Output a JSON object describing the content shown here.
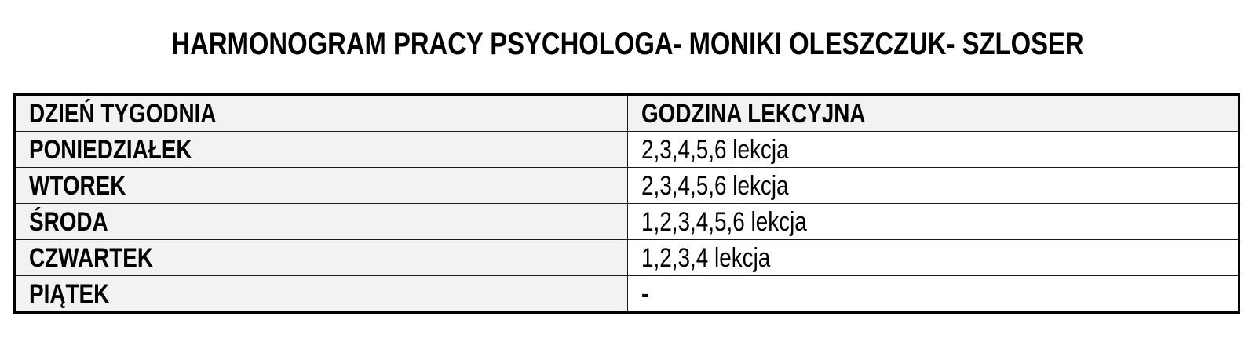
{
  "page": {
    "title": "HARMONOGRAM PRACY PSYCHOLOGA- MONIKI OLESZCZUK- SZLOSER"
  },
  "table": {
    "headers": [
      "DZIEŃ TYGODNIA",
      "GODZINA LEKCYJNA"
    ],
    "rows": [
      {
        "day": "PONIEDZIAŁEK",
        "hours": "2,3,4,5,6 lekcja"
      },
      {
        "day": "WTOREK",
        "hours": "2,3,4,5,6 lekcja"
      },
      {
        "day": "ŚRODA",
        "hours": "1,2,3,4,5,6 lekcja"
      },
      {
        "day": "CZWARTEK",
        "hours": "1,2,3,4 lekcja"
      },
      {
        "day": "PIĄTEK",
        "hours": "-"
      }
    ],
    "colors": {
      "header_bg": "#f2f2f2",
      "day_column_bg": "#f2f2f2",
      "value_cell_bg": "#ffffff",
      "border": "#000000",
      "text": "#000000"
    }
  }
}
